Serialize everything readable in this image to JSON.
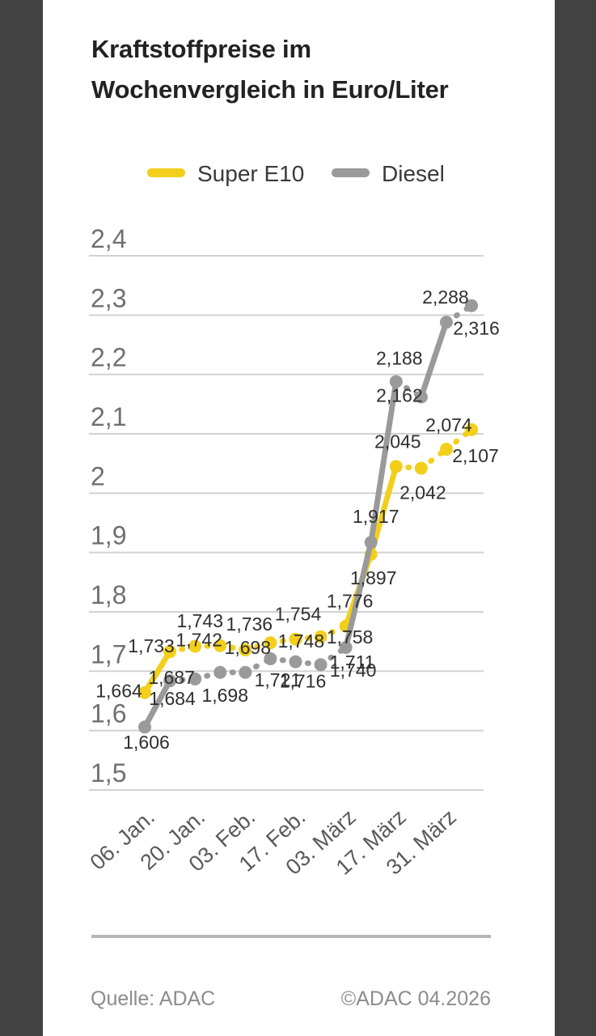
{
  "frame": {
    "side_bar_color": "#424242",
    "card_color": "#ffffff"
  },
  "title": {
    "line1": "Kraftstoffpreise im",
    "line2": "Wochenvergleich in Euro/Liter"
  },
  "legend": [
    {
      "label": "Super E10",
      "color": "#F3CF1C"
    },
    {
      "label": "Diesel",
      "color": "#9A9A9A"
    }
  ],
  "chart_data": {
    "type": "line",
    "title": "Kraftstoffpreise im Wochenvergleich in Euro/Liter",
    "xlabel": "",
    "ylabel": "Euro/Liter",
    "ylim": [
      1.5,
      2.4
    ],
    "grid": true,
    "legend_position": "top",
    "y_ticks": [
      {
        "value": 2.4,
        "label": "2,4"
      },
      {
        "value": 2.3,
        "label": "2,3"
      },
      {
        "value": 2.2,
        "label": "2,2"
      },
      {
        "value": 2.1,
        "label": "2,1"
      },
      {
        "value": 2.0,
        "label": "2"
      },
      {
        "value": 1.9,
        "label": "1,9"
      },
      {
        "value": 1.8,
        "label": "1,8"
      },
      {
        "value": 1.7,
        "label": "1,7"
      },
      {
        "value": 1.6,
        "label": "1,6"
      },
      {
        "value": 1.5,
        "label": "1,5"
      }
    ],
    "n_points": 14,
    "x_tick_labels": [
      "06. Jan.",
      "20. Jan.",
      "03. Feb.",
      "17. Feb.",
      "03. März",
      "17. März",
      "31. März"
    ],
    "x_tick_point_indices": [
      0,
      2,
      4,
      6,
      8,
      10,
      12
    ],
    "series": [
      {
        "name": "Super E10",
        "color": "#F3CF1C",
        "values": [
          1.664,
          1.733,
          1.742,
          1.743,
          1.736,
          1.748,
          1.754,
          1.758,
          1.776,
          1.897,
          2.045,
          2.042,
          2.074,
          2.107
        ],
        "labels": [
          "1,664",
          "1,733",
          "1,742",
          "1,743",
          "1,736",
          "1,748",
          "1,754",
          "1,758",
          "1,776",
          "1,897",
          "2,045",
          "2,042",
          "2,074",
          "2,107"
        ],
        "label_offsets": [
          [
            -32,
            -2
          ],
          [
            -23,
            -7
          ],
          [
            5,
            -8
          ],
          [
            -25,
            -31
          ],
          [
            5,
            -32
          ],
          [
            38,
            -2
          ],
          [
            3,
            -31
          ],
          [
            36,
            0
          ],
          [
            5,
            -31
          ],
          [
            3,
            29
          ],
          [
            2,
            -31
          ],
          [
            2,
            30
          ],
          [
            3,
            -30
          ],
          [
            5,
            32
          ]
        ]
      },
      {
        "name": "Diesel",
        "color": "#9A9A9A",
        "values": [
          1.606,
          1.684,
          1.687,
          1.698,
          1.698,
          1.721,
          1.716,
          1.711,
          1.74,
          1.917,
          2.188,
          2.162,
          2.288,
          2.316
        ],
        "labels": [
          "1,606",
          "1,684",
          "1,687",
          "1,698",
          "1,698",
          "1,721",
          "1,716",
          "1,711",
          "1,740",
          "1,917",
          "2,188",
          "2,162",
          "2,288",
          "2,316"
        ],
        "label_offsets": [
          [
            2,
            19
          ],
          [
            3,
            22
          ],
          [
            -29,
            -2
          ],
          [
            6,
            28
          ],
          [
            3,
            -31
          ],
          [
            9,
            26
          ],
          [
            9,
            24
          ],
          [
            39,
            -3
          ],
          [
            9,
            28
          ],
          [
            6,
            -32
          ],
          [
            4,
            -29
          ],
          [
            -27,
            -2
          ],
          [
            -1,
            -31
          ],
          [
            6,
            28
          ]
        ]
      }
    ]
  },
  "footer": {
    "source": "Quelle: ADAC",
    "copyright": "©ADAC 04.2026"
  }
}
